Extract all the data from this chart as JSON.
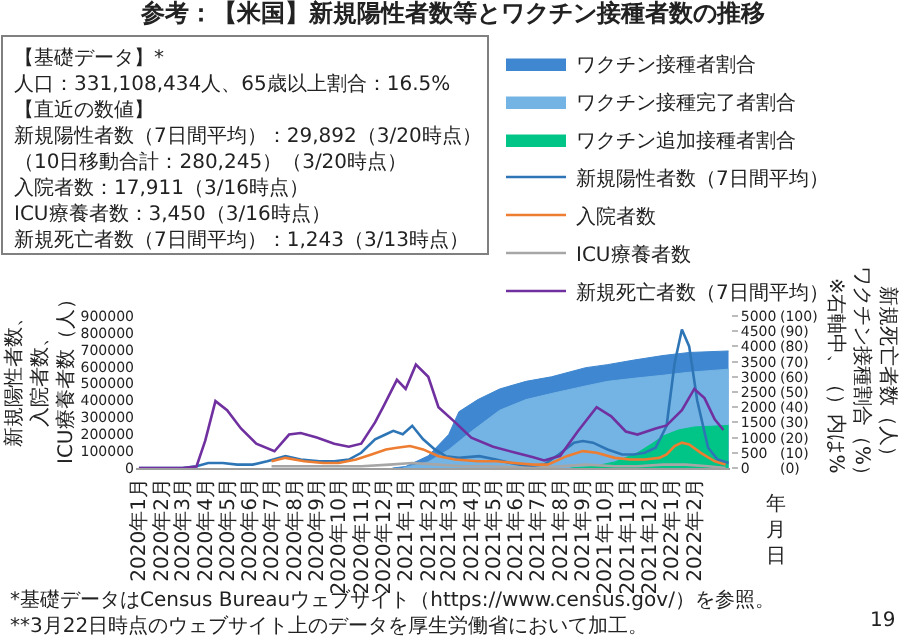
{
  "chart_data": {
    "type": "line",
    "title": "参考：【米国】新規陽性者数等とワクチン接種者数の推移",
    "ylabel": "新規陽性者数、入院者数、ICU療養者数（人）",
    "y2label": "新規死亡者数（人）ワクチン接種割合（%）※右軸中、（）内は%",
    "xlabel": "年月日",
    "xlim": [
      "2019-12-28",
      "2022-03-22"
    ],
    "xticks": [
      {
        "value": "2020-01-01",
        "label": "2020年1月"
      },
      {
        "value": "2020-02-01",
        "label": "2020年2月"
      },
      {
        "value": "2020-03-01",
        "label": "2020年3月"
      },
      {
        "value": "2020-04-01",
        "label": "2020年4月"
      },
      {
        "value": "2020-05-01",
        "label": "2020年5月"
      },
      {
        "value": "2020-06-01",
        "label": "2020年6月"
      },
      {
        "value": "2020-07-01",
        "label": "2020年7月"
      },
      {
        "value": "2020-08-01",
        "label": "2020年8月"
      },
      {
        "value": "2020-09-01",
        "label": "2020年9月"
      },
      {
        "value": "2020-10-01",
        "label": "2020年10月"
      },
      {
        "value": "2020-11-01",
        "label": "2020年11月"
      },
      {
        "value": "2020-12-01",
        "label": "2020年12月"
      },
      {
        "value": "2021-01-01",
        "label": "2021年1月"
      },
      {
        "value": "2021-02-01",
        "label": "2021年2月"
      },
      {
        "value": "2021-03-01",
        "label": "2021年3月"
      },
      {
        "value": "2021-04-01",
        "label": "2021年4月"
      },
      {
        "value": "2021-05-01",
        "label": "2021年5月"
      },
      {
        "value": "2021-06-01",
        "label": "2021年6月"
      },
      {
        "value": "2021-07-01",
        "label": "2021年7月"
      },
      {
        "value": "2021-08-01",
        "label": "2021年8月"
      },
      {
        "value": "2021-09-01",
        "label": "2021年9月"
      },
      {
        "value": "2021-10-01",
        "label": "2021年10月"
      },
      {
        "value": "2021-11-01",
        "label": "2021年11月"
      },
      {
        "value": "2021-12-01",
        "label": "2021年12月"
      },
      {
        "value": "2022-01-01",
        "label": "2022年1月"
      },
      {
        "value": "2022-02-01",
        "label": "2022年2月"
      }
    ],
    "ylim": [
      0,
      900000
    ],
    "yticks": [
      0,
      100000,
      200000,
      300000,
      400000,
      500000,
      600000,
      700000,
      800000,
      900000
    ],
    "y2lim": [
      0,
      5000
    ],
    "y2ticks": [
      0,
      500,
      1000,
      1500,
      2000,
      2500,
      3000,
      3500,
      4000,
      4500,
      5000
    ],
    "y3lim": [
      0,
      100
    ],
    "y3ticks": [
      {
        "value": 0,
        "label": "(0)"
      },
      {
        "value": 10,
        "label": "(10)"
      },
      {
        "value": 20,
        "label": "(20)"
      },
      {
        "value": 30,
        "label": "(30)"
      },
      {
        "value": 40,
        "label": "(40)"
      },
      {
        "value": 50,
        "label": "(50)"
      },
      {
        "value": 60,
        "label": "(60)"
      },
      {
        "value": 70,
        "label": "(70)"
      },
      {
        "value": 80,
        "label": "(80)"
      },
      {
        "value": 90,
        "label": "(90)"
      },
      {
        "value": 100,
        "label": "(100)"
      }
    ],
    "legend": "top right",
    "series": [
      {
        "name": "ワクチン接種者割合",
        "type": "area",
        "axis": "y3",
        "color": "#3f87d0",
        "x": [
          "2020-12-14",
          "2021-01-01",
          "2021-02-01",
          "2021-03-01",
          "2021-03-15",
          "2021-04-10",
          "2021-05-10",
          "2021-06-15",
          "2021-07-20",
          "2021-09-05",
          "2021-10-05",
          "2021-11-10",
          "2021-12-20",
          "2022-01-25",
          "2022-03-20"
        ],
        "values": [
          0,
          1,
          8,
          22,
          37,
          45,
          52,
          57,
          60,
          66,
          68,
          71,
          74,
          76,
          77
        ]
      },
      {
        "name": "ワクチン接種完了者割合",
        "type": "area",
        "axis": "y3",
        "color": "#74b4e4",
        "x": [
          "2020-12-28",
          "2021-02-01",
          "2021-03-01",
          "2021-04-01",
          "2021-05-10",
          "2021-06-15",
          "2021-07-20",
          "2021-09-05",
          "2021-10-05",
          "2021-11-10",
          "2021-12-20",
          "2022-01-25",
          "2022-03-20"
        ],
        "values": [
          0,
          4,
          12,
          24,
          38,
          45,
          49,
          54,
          57,
          59,
          61,
          63,
          65
        ]
      },
      {
        "name": "ワクチン追加接種者割合",
        "type": "area",
        "axis": "y3",
        "color": "#00c587",
        "x": [
          "2021-08-15",
          "2021-09-15",
          "2021-10-15",
          "2021-11-15",
          "2021-12-05",
          "2021-12-20",
          "2022-01-10",
          "2022-02-01",
          "2022-03-20"
        ],
        "values": [
          0,
          1,
          4,
          10,
          16,
          21,
          25,
          27,
          28
        ]
      },
      {
        "name": "新規陽性者数（7日間平均）",
        "axis": "y",
        "color": "#2e75b6",
        "x": [
          "2020-01-01",
          "2020-03-01",
          "2020-03-20",
          "2020-04-05",
          "2020-04-25",
          "2020-05-15",
          "2020-06-05",
          "2020-06-25",
          "2020-07-20",
          "2020-08-10",
          "2020-09-05",
          "2020-09-25",
          "2020-10-15",
          "2020-11-01",
          "2020-11-20",
          "2020-12-05",
          "2020-12-15",
          "2020-12-28",
          "2021-01-10",
          "2021-01-25",
          "2021-02-10",
          "2021-02-25",
          "2021-03-15",
          "2021-04-12",
          "2021-05-05",
          "2021-05-25",
          "2021-06-20",
          "2021-07-10",
          "2021-07-30",
          "2021-08-20",
          "2021-09-01",
          "2021-09-15",
          "2021-10-05",
          "2021-10-25",
          "2021-11-10",
          "2021-11-25",
          "2021-12-10",
          "2021-12-25",
          "2022-01-05",
          "2022-01-15",
          "2022-01-25",
          "2022-02-05",
          "2022-02-20",
          "2022-03-05",
          "2022-03-20"
        ],
        "values": [
          0,
          0,
          10000,
          30000,
          30000,
          20000,
          20000,
          40000,
          70000,
          50000,
          40000,
          40000,
          50000,
          90000,
          170000,
          200000,
          220000,
          200000,
          250000,
          170000,
          110000,
          70000,
          60000,
          70000,
          50000,
          30000,
          10000,
          20000,
          80000,
          150000,
          160000,
          150000,
          110000,
          80000,
          80000,
          90000,
          120000,
          250000,
          620000,
          820000,
          720000,
          400000,
          120000,
          50000,
          30000
        ]
      },
      {
        "name": "入院者数",
        "axis": "y",
        "color": "#ed7d31",
        "x": [
          "2020-07-01",
          "2020-07-20",
          "2020-08-15",
          "2020-09-10",
          "2020-10-01",
          "2020-10-25",
          "2020-11-15",
          "2020-12-05",
          "2020-12-20",
          "2021-01-07",
          "2021-01-25",
          "2021-02-15",
          "2021-03-10",
          "2021-04-10",
          "2021-05-05",
          "2021-05-30",
          "2021-06-25",
          "2021-07-15",
          "2021-08-10",
          "2021-09-01",
          "2021-09-20",
          "2021-10-15",
          "2021-11-05",
          "2021-11-25",
          "2021-12-15",
          "2021-12-25",
          "2022-01-05",
          "2022-01-15",
          "2022-01-25",
          "2022-02-10",
          "2022-03-01",
          "2022-03-16"
        ],
        "values": [
          40000,
          60000,
          40000,
          30000,
          30000,
          50000,
          80000,
          110000,
          120000,
          130000,
          110000,
          70000,
          50000,
          40000,
          40000,
          30000,
          20000,
          20000,
          70000,
          100000,
          90000,
          60000,
          50000,
          50000,
          60000,
          80000,
          130000,
          150000,
          140000,
          90000,
          40000,
          20000
        ]
      },
      {
        "name": "ICU療養者数",
        "axis": "y",
        "color": "#a6a6a6",
        "x": [
          "2020-07-01",
          "2020-07-25",
          "2020-09-15",
          "2020-11-01",
          "2020-12-10",
          "2021-01-10",
          "2021-02-15",
          "2021-03-20",
          "2021-04-25",
          "2021-06-25",
          "2021-08-01",
          "2021-09-05",
          "2021-10-15",
          "2021-11-15",
          "2021-12-20",
          "2022-01-20",
          "2022-02-20",
          "2022-03-16"
        ],
        "values": [
          10000,
          10000,
          10000,
          10000,
          20000,
          30000,
          20000,
          10000,
          10000,
          0,
          10000,
          20000,
          10000,
          10000,
          20000,
          20000,
          10000,
          0
        ]
      },
      {
        "name": "新規死亡者数（7日間平均）",
        "axis": "y2",
        "color": "#7030a0",
        "x": [
          "2020-01-01",
          "2020-03-01",
          "2020-03-20",
          "2020-04-01",
          "2020-04-15",
          "2020-05-01",
          "2020-05-20",
          "2020-06-10",
          "2020-07-05",
          "2020-07-25",
          "2020-08-10",
          "2020-09-01",
          "2020-09-25",
          "2020-10-15",
          "2020-11-01",
          "2020-11-20",
          "2020-12-01",
          "2020-12-20",
          "2021-01-01",
          "2021-01-15",
          "2021-02-01",
          "2021-02-15",
          "2021-03-10",
          "2021-04-01",
          "2021-05-01",
          "2021-06-01",
          "2021-06-25",
          "2021-07-10",
          "2021-08-01",
          "2021-08-25",
          "2021-09-20",
          "2021-10-10",
          "2021-10-30",
          "2021-11-15",
          "2021-12-10",
          "2021-12-25",
          "2022-01-15",
          "2022-02-01",
          "2022-02-15",
          "2022-03-01",
          "2022-03-13"
        ],
        "values": [
          0,
          0,
          50,
          900,
          2200,
          1900,
          1300,
          800,
          550,
          1100,
          1150,
          1000,
          800,
          700,
          800,
          1500,
          2000,
          2900,
          2600,
          3400,
          3000,
          2000,
          1500,
          1000,
          700,
          500,
          350,
          250,
          400,
          1200,
          2000,
          1700,
          1200,
          1100,
          1300,
          1400,
          1900,
          2600,
          2300,
          1600,
          1250
        ]
      }
    ],
    "annotations": [
      "【基礎データ】*",
      "人口：331,108,434人、65歳以上割合：16.5%",
      "【直近の数値】",
      "新規陽性者数（7日間平均）：29,892（3/20時点）",
      "（10日移動合計：280,245）（3/20時点）",
      "入院者数：17,911（3/16時点）",
      "ICU療養者数：3,450（3/16時点）",
      "新規死亡者数（7日間平均）：1,243（3/13時点）",
      "*基礎データはCensus Bureauウェブサイト（https://www.census.gov/）を参照。",
      "**3月22日時点のウェブサイト上のデータを厚生労働省において加工。",
      "19"
    ]
  }
}
